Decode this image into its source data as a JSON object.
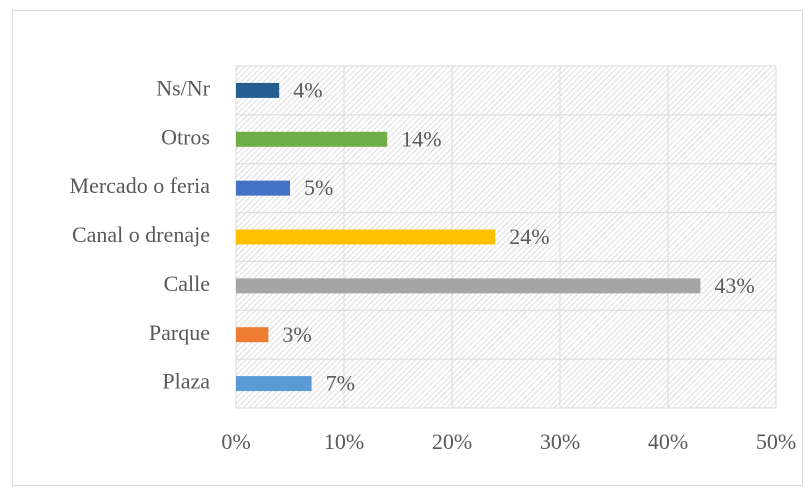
{
  "chart_data": {
    "type": "bar",
    "orientation": "horizontal",
    "categories": [
      "Plaza",
      "Parque",
      "Calle",
      "Canal o drenaje",
      "Mercado o feria",
      "Otros",
      "Ns/Nr"
    ],
    "values": [
      7,
      3,
      43,
      24,
      5,
      14,
      4
    ],
    "value_labels": [
      "7%",
      "3%",
      "43%",
      "24%",
      "5%",
      "14%",
      "4%"
    ],
    "colors": [
      "#5b9bd5",
      "#ed7d31",
      "#a5a5a5",
      "#ffc000",
      "#4472c4",
      "#70ad47",
      "#255e91"
    ],
    "xlim": [
      0,
      50
    ],
    "xticks": [
      {
        "value": 0,
        "label": "0%"
      },
      {
        "value": 10,
        "label": "10%"
      },
      {
        "value": 20,
        "label": "20%"
      },
      {
        "value": 30,
        "label": "30%"
      },
      {
        "value": 40,
        "label": "40%"
      },
      {
        "value": 50,
        "label": "50%"
      }
    ],
    "grid": true
  }
}
